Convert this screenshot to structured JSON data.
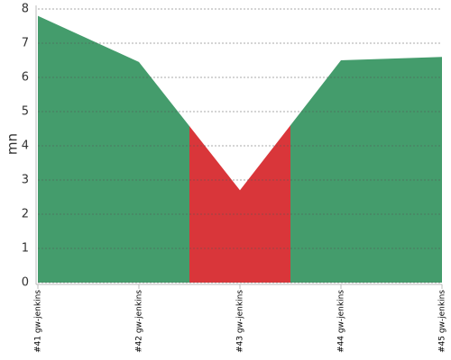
{
  "chart_data": {
    "type": "area",
    "y_label": "mn",
    "categories": [
      "#41 gw-jenkins",
      "#42 gw-jenkins",
      "#43 gw-jenkins",
      "#44 gw-jenkins",
      "#45 gw-jenkins"
    ],
    "values": [
      7.8,
      6.45,
      2.7,
      6.5,
      6.6
    ],
    "colors": [
      "#449c6c",
      "#449c6c",
      "#d9363a",
      "#449c6c",
      "#449c6c"
    ],
    "ylim": [
      0,
      8
    ],
    "yticks": [
      0,
      1,
      2,
      3,
      4,
      5,
      6,
      7,
      8
    ],
    "grid": true
  }
}
